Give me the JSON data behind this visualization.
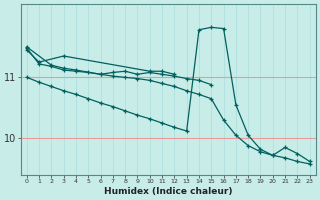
{
  "xlabel": "Humidex (Indice chaleur)",
  "bg_color": "#c8ede8",
  "line_color": "#006060",
  "grid_color_h": "#ee9999",
  "grid_color_v": "#aadddd",
  "x_values": [
    0,
    1,
    2,
    3,
    4,
    5,
    6,
    7,
    8,
    9,
    10,
    11,
    12,
    13,
    14,
    15,
    16,
    17,
    18,
    19,
    20,
    21,
    22,
    23
  ],
  "series": [
    [
      11.45,
      11.25,
      null,
      11.35,
      null,
      null,
      null,
      null,
      null,
      null,
      11.1,
      11.1,
      11.05,
      null,
      null,
      null,
      null,
      null,
      null,
      null,
      null,
      null,
      null,
      null
    ],
    [
      11.5,
      null,
      11.2,
      11.15,
      11.12,
      null,
      11.05,
      11.08,
      11.1,
      11.05,
      11.08,
      11.05,
      11.02,
      10.98,
      10.95,
      10.88,
      null,
      null,
      null,
      null,
      null,
      null,
      null,
      null
    ],
    [
      11.48,
      11.22,
      11.18,
      11.12,
      11.1,
      11.08,
      11.05,
      11.02,
      11.0,
      10.98,
      10.95,
      10.9,
      10.85,
      10.78,
      10.72,
      10.65,
      10.3,
      10.05,
      9.88,
      9.78,
      9.72,
      9.68,
      9.62,
      9.58
    ],
    [
      11.0,
      10.92,
      10.85,
      10.78,
      10.72,
      10.65,
      10.58,
      10.52,
      10.45,
      10.38,
      10.32,
      10.25,
      10.18,
      10.12,
      11.78,
      11.82,
      11.8,
      10.55,
      10.05,
      9.82,
      9.72,
      9.85,
      9.75,
      9.62
    ]
  ],
  "ylim": [
    9.4,
    12.2
  ],
  "yticks": [
    10,
    11
  ],
  "xlim": [
    -0.5,
    23.5
  ]
}
